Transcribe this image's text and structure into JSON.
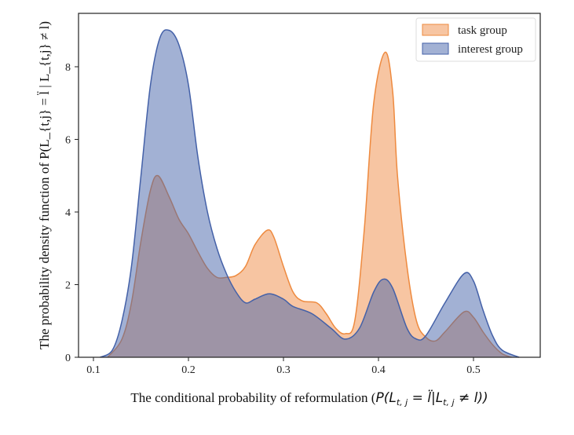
{
  "chart_data": {
    "type": "area",
    "title": "",
    "xlabel": "The conditional probability of reformulation (P(L_{t,j} = l̈ | L_{t,j} ≠ l))",
    "xlabel_text": "The conditional probability of reformulation (",
    "xlabel_math": "P(L",
    "xlabel_tail": "t, j",
    "xlabel_mid": " = l̈|L",
    "xlabel_end": " ≠ l))",
    "ylabel": "The probability density function of P(L_{t,j} = l̈ | L_{t,j} ≠ l)",
    "xlim": [
      0.085,
      0.57
    ],
    "ylim": [
      0,
      9.4
    ],
    "xticks": [
      "0.1",
      "0.2",
      "0.3",
      "0.4",
      "0.5"
    ],
    "yticks": [
      "0",
      "2",
      "4",
      "6",
      "8"
    ],
    "grid": false,
    "legend_position": "top-right",
    "series": [
      {
        "name": "task group",
        "stroke": "#ee8a3f",
        "fill": "rgba(240,140,70,0.5)",
        "x": [
          0.115,
          0.13,
          0.14,
          0.15,
          0.16,
          0.168,
          0.18,
          0.19,
          0.2,
          0.21,
          0.22,
          0.23,
          0.24,
          0.25,
          0.26,
          0.27,
          0.283,
          0.29,
          0.3,
          0.31,
          0.32,
          0.335,
          0.345,
          0.355,
          0.365,
          0.375,
          0.385,
          0.395,
          0.407,
          0.415,
          0.42,
          0.43,
          0.44,
          0.45,
          0.46,
          0.47,
          0.49,
          0.5,
          0.51,
          0.52,
          0.53,
          0.54
        ],
        "y": [
          0,
          0.5,
          1.5,
          3.2,
          4.6,
          5.0,
          4.4,
          3.8,
          3.4,
          2.9,
          2.45,
          2.2,
          2.2,
          2.25,
          2.5,
          3.1,
          3.5,
          3.3,
          2.5,
          1.8,
          1.55,
          1.5,
          1.2,
          0.8,
          0.65,
          1.0,
          3.5,
          7.0,
          8.4,
          7.3,
          5.0,
          2.5,
          1.0,
          0.55,
          0.45,
          0.7,
          1.25,
          1.1,
          0.7,
          0.35,
          0.1,
          0
        ]
      },
      {
        "name": "interest group",
        "stroke": "#4461a8",
        "fill": "rgba(70,100,170,0.5)",
        "x": [
          0.107,
          0.12,
          0.13,
          0.14,
          0.15,
          0.16,
          0.17,
          0.18,
          0.19,
          0.2,
          0.21,
          0.22,
          0.23,
          0.24,
          0.25,
          0.26,
          0.27,
          0.285,
          0.3,
          0.31,
          0.33,
          0.35,
          0.365,
          0.38,
          0.395,
          0.405,
          0.415,
          0.43,
          0.44,
          0.45,
          0.47,
          0.49,
          0.5,
          0.51,
          0.52,
          0.53,
          0.548
        ],
        "y": [
          0,
          0.2,
          1.0,
          2.5,
          5.0,
          7.5,
          8.8,
          9.0,
          8.6,
          7.5,
          5.5,
          4.0,
          3.0,
          2.3,
          1.8,
          1.5,
          1.6,
          1.75,
          1.6,
          1.4,
          1.2,
          0.8,
          0.5,
          0.8,
          1.8,
          2.15,
          1.9,
          0.8,
          0.5,
          0.6,
          1.5,
          2.3,
          2.1,
          1.3,
          0.6,
          0.2,
          0
        ]
      }
    ]
  }
}
